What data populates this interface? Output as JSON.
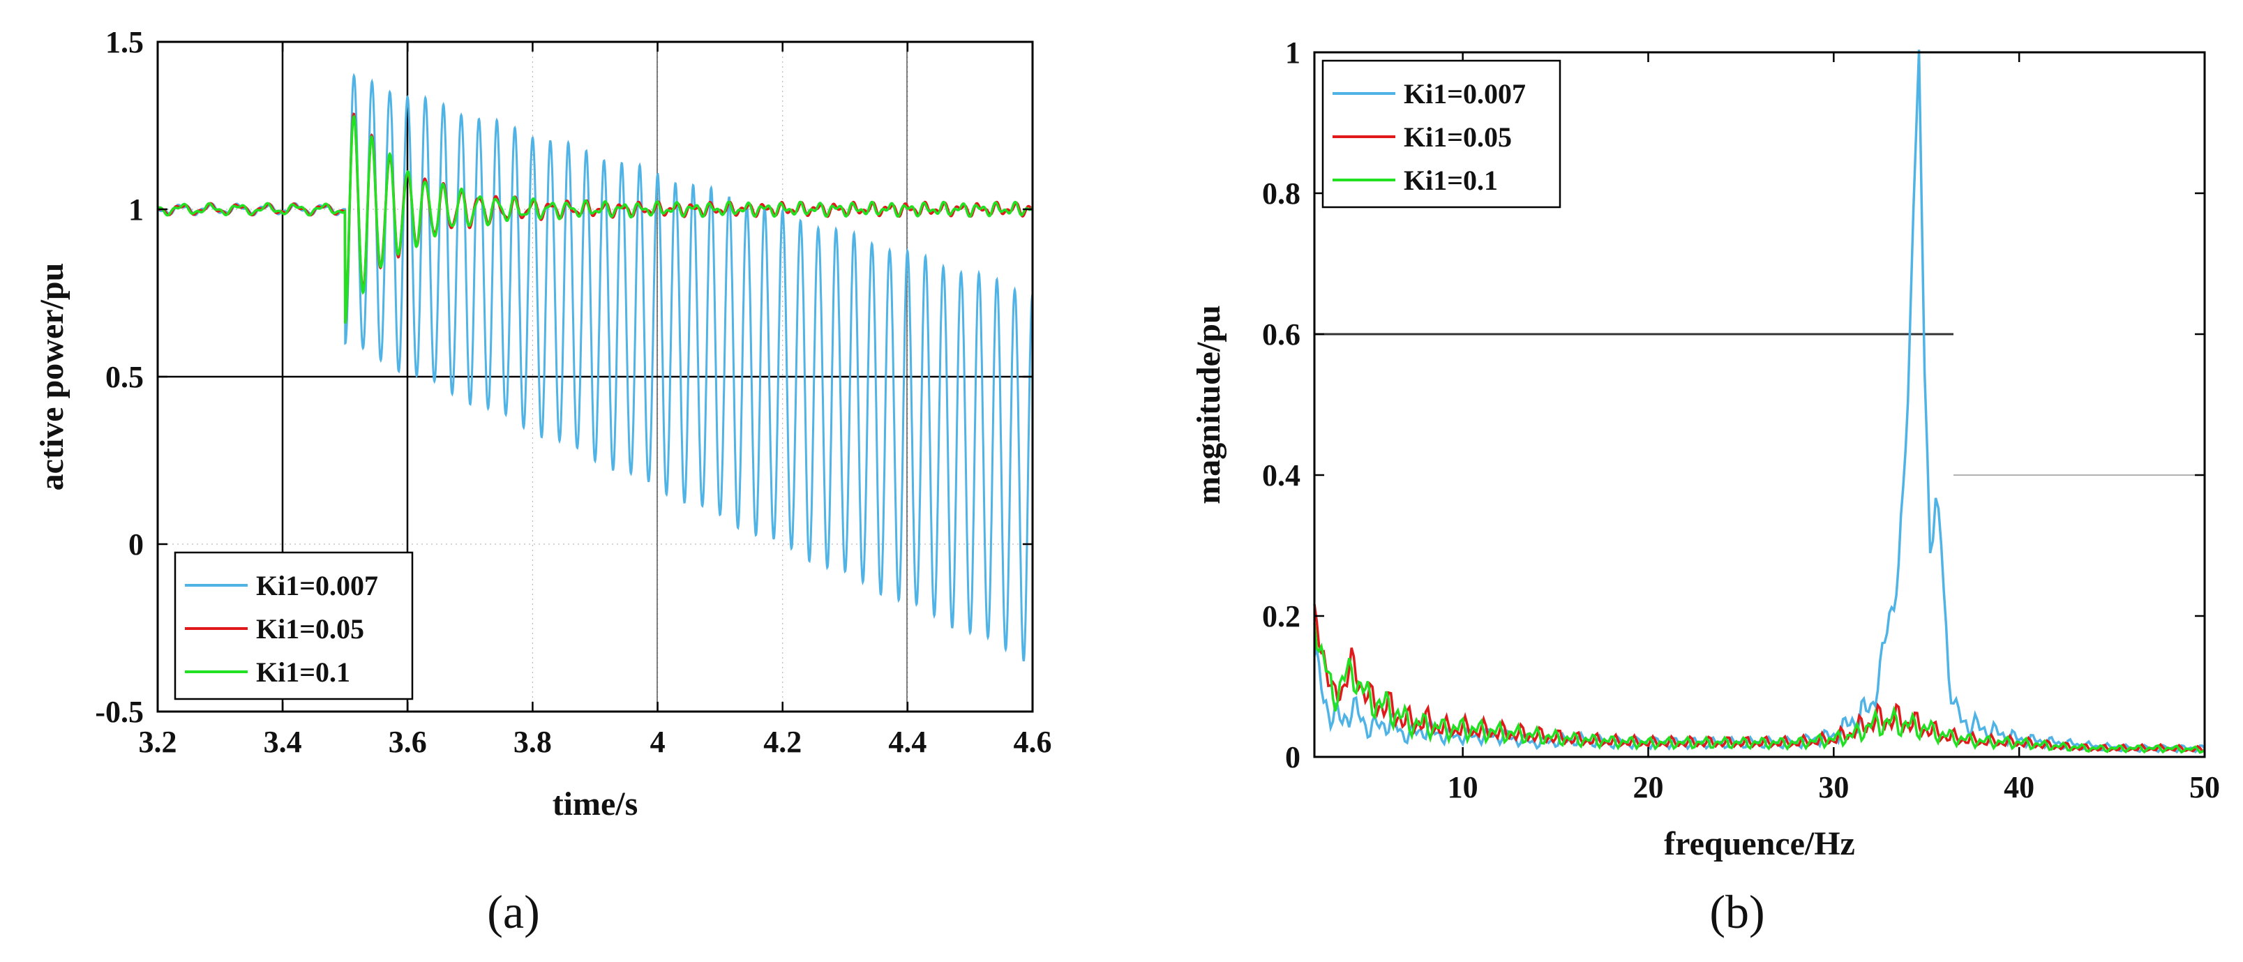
{
  "figure": {
    "panel_labels": [
      "(a)",
      "(b)"
    ]
  },
  "chart_data": [
    {
      "type": "line",
      "panel": "(a)",
      "title": "",
      "xlabel": "time/s",
      "ylabel": "active power/pu",
      "xlim": [
        3.2,
        4.6
      ],
      "ylim": [
        -0.5,
        1.5
      ],
      "xticks": [
        3.2,
        3.4,
        3.6,
        3.8,
        4.0,
        4.2,
        4.4,
        4.6
      ],
      "xtick_labels": [
        "3.2",
        "3.4",
        "3.6",
        "3.8",
        "4",
        "4.2",
        "4.4",
        "4.6"
      ],
      "yticks": [
        -0.5,
        0,
        0.5,
        1,
        1.5
      ],
      "ytick_labels": [
        "-0.5",
        "0",
        "0.5",
        "1",
        "1.5"
      ],
      "grid": "dotted",
      "legend_position": "bottom-left",
      "disturbance_time": 3.5,
      "series": [
        {
          "name": "Ki1=0.007",
          "color": "#4fb3e6",
          "behavior": "growing oscillation",
          "mean_start": 1.0,
          "mean_end": 0.2,
          "amp_start": 0.4,
          "amp_end": 0.55,
          "freq_hz": 35,
          "end_time": 4.6
        },
        {
          "name": "Ki1=0.05",
          "color": "#e0191b",
          "behavior": "damped oscillation",
          "mean_start": 1.0,
          "mean_end": 1.0,
          "amp_start": 0.32,
          "amp_end": 0.01,
          "freq_hz": 35,
          "end_time": 4.6
        },
        {
          "name": "Ki1=0.1",
          "color": "#22e022",
          "behavior": "damped oscillation",
          "mean_start": 1.0,
          "mean_end": 1.0,
          "amp_start": 0.32,
          "amp_end": 0.01,
          "freq_hz": 35,
          "end_time": 4.6
        }
      ]
    },
    {
      "type": "line",
      "panel": "(b)",
      "title": "",
      "xlabel": "frequence/Hz",
      "ylabel": "magnitude/pu",
      "xlim": [
        2,
        50
      ],
      "ylim": [
        0,
        1
      ],
      "xticks": [
        10,
        20,
        30,
        40,
        50
      ],
      "xtick_labels": [
        "10",
        "20",
        "30",
        "40",
        "50"
      ],
      "yticks": [
        0,
        0.2,
        0.4,
        0.6,
        0.8,
        1
      ],
      "ytick_labels": [
        "0",
        "0.2",
        "0.4",
        "0.6",
        "0.8",
        "1"
      ],
      "grid": "off",
      "legend_position": "top-left",
      "series": [
        {
          "name": "Ki1=0.007",
          "color": "#4fb3e6",
          "x": [
            2,
            2.5,
            3,
            3.5,
            4,
            5,
            6,
            7,
            8,
            9,
            10,
            12,
            14,
            16,
            18,
            20,
            22,
            24,
            26,
            28,
            30,
            31,
            32,
            32.5,
            33,
            33.5,
            34,
            34.3,
            34.6,
            34.9,
            35.2,
            35.5,
            35.8,
            36.2,
            36.6,
            37,
            38,
            40,
            42,
            44,
            46,
            48,
            50
          ],
          "y": [
            0.15,
            0.08,
            0.06,
            0.05,
            0.07,
            0.04,
            0.05,
            0.03,
            0.04,
            0.03,
            0.03,
            0.03,
            0.02,
            0.025,
            0.02,
            0.02,
            0.02,
            0.02,
            0.02,
            0.02,
            0.03,
            0.05,
            0.07,
            0.12,
            0.2,
            0.26,
            0.5,
            0.8,
            0.98,
            0.55,
            0.3,
            0.36,
            0.3,
            0.12,
            0.06,
            0.05,
            0.04,
            0.025,
            0.02,
            0.015,
            0.012,
            0.012,
            0.012
          ]
        },
        {
          "name": "Ki1=0.05",
          "color": "#e0191b",
          "x": [
            2,
            2.5,
            3,
            3.5,
            4,
            5,
            6,
            7,
            8,
            9,
            10,
            12,
            14,
            16,
            18,
            20,
            22,
            24,
            26,
            28,
            30,
            31,
            32,
            33,
            34,
            35,
            36,
            37,
            38,
            40,
            42,
            44,
            46,
            48,
            50
          ],
          "y": [
            0.19,
            0.15,
            0.08,
            0.1,
            0.13,
            0.08,
            0.07,
            0.05,
            0.05,
            0.04,
            0.04,
            0.035,
            0.03,
            0.025,
            0.022,
            0.02,
            0.02,
            0.02,
            0.02,
            0.02,
            0.025,
            0.035,
            0.05,
            0.055,
            0.05,
            0.04,
            0.03,
            0.025,
            0.022,
            0.02,
            0.015,
            0.012,
            0.012,
            0.012,
            0.01
          ]
        },
        {
          "name": "Ki1=0.1",
          "color": "#22e022",
          "x": [
            2,
            2.5,
            3,
            3.5,
            4,
            5,
            6,
            7,
            8,
            9,
            10,
            12,
            14,
            16,
            18,
            20,
            22,
            24,
            26,
            28,
            30,
            31,
            32,
            33,
            34,
            35,
            36,
            37,
            38,
            40,
            42,
            44,
            46,
            48,
            50
          ],
          "y": [
            0.19,
            0.14,
            0.08,
            0.11,
            0.12,
            0.08,
            0.07,
            0.05,
            0.045,
            0.04,
            0.04,
            0.035,
            0.03,
            0.025,
            0.022,
            0.02,
            0.02,
            0.02,
            0.02,
            0.02,
            0.025,
            0.03,
            0.045,
            0.05,
            0.045,
            0.04,
            0.03,
            0.025,
            0.022,
            0.02,
            0.015,
            0.012,
            0.012,
            0.012,
            0.01
          ]
        }
      ]
    }
  ]
}
